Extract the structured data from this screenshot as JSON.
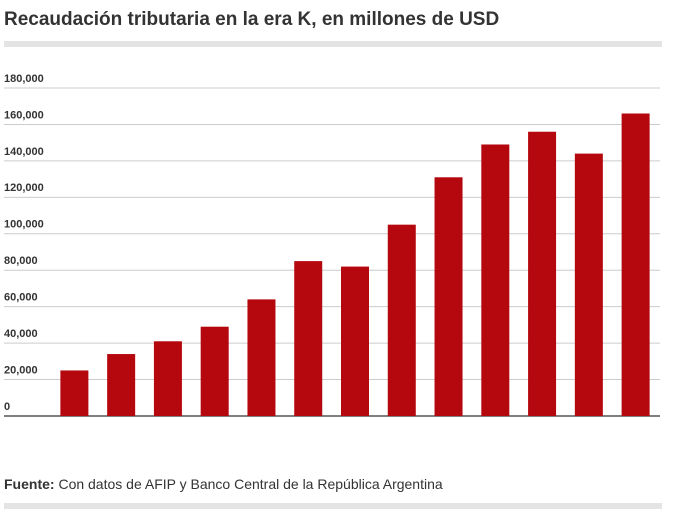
{
  "chart_data": {
    "type": "bar",
    "title": "Recaudación tributaria en la era K, en millones de USD",
    "categories": [
      null,
      null,
      null,
      null,
      null,
      null,
      null,
      null,
      null,
      null,
      null,
      null,
      null
    ],
    "values": [
      25000,
      34000,
      41000,
      49000,
      64000,
      85000,
      82000,
      105000,
      131000,
      149000,
      156000,
      144000,
      166000
    ],
    "color": "#b5080e",
    "ylim": [
      0,
      180000
    ],
    "yticks": [
      0,
      {
        "value": 20000,
        "label": "20,000"
      },
      {
        "value": 40000,
        "label": "40,000"
      },
      {
        "value": 60000,
        "label": "60,000"
      },
      {
        "value": 80000,
        "label": "80,000"
      },
      {
        "value": 100000,
        "label": "100,000"
      },
      {
        "value": 120000,
        "label": "120,000"
      },
      {
        "value": 140000,
        "label": "140,000"
      },
      {
        "value": 160000,
        "label": "160,000"
      },
      {
        "value": 180000,
        "label": "180,000"
      }
    ],
    "grid": true,
    "source_label": "Fuente:",
    "source_text": "Con datos de AFIP y Banco Central de la República Argentina"
  }
}
